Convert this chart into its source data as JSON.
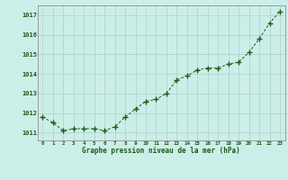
{
  "x": [
    0,
    1,
    2,
    3,
    4,
    5,
    6,
    7,
    8,
    9,
    10,
    11,
    12,
    13,
    14,
    15,
    16,
    17,
    18,
    19,
    20,
    21,
    22,
    23
  ],
  "y": [
    1011.8,
    1011.5,
    1011.1,
    1011.2,
    1011.2,
    1011.2,
    1011.1,
    1011.3,
    1011.8,
    1012.2,
    1012.6,
    1012.7,
    1013.0,
    1013.7,
    1013.9,
    1014.2,
    1014.3,
    1014.3,
    1014.5,
    1014.6,
    1015.1,
    1015.8,
    1016.6,
    1017.2
  ],
  "line_color": "#1a5c1a",
  "marker": "+",
  "marker_size": 4,
  "background_color": "#cceee8",
  "grid_color": "#b0d4cc",
  "xlabel": "Graphe pression niveau de la mer (hPa)",
  "xlabel_color": "#1a5c1a",
  "tick_color": "#1a5c1a",
  "ylim": [
    1010.6,
    1017.5
  ],
  "yticks": [
    1011,
    1012,
    1013,
    1014,
    1015,
    1016,
    1017
  ],
  "xticks": [
    0,
    1,
    2,
    3,
    4,
    5,
    6,
    7,
    8,
    9,
    10,
    11,
    12,
    13,
    14,
    15,
    16,
    17,
    18,
    19,
    20,
    21,
    22,
    23
  ]
}
